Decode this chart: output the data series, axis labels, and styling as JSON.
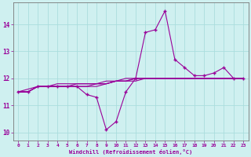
{
  "xlabel": "Windchill (Refroidissement éolien,°C)",
  "x": [
    0,
    1,
    2,
    3,
    4,
    5,
    6,
    7,
    8,
    9,
    10,
    11,
    12,
    13,
    14,
    15,
    16,
    17,
    18,
    19,
    20,
    21,
    22,
    23
  ],
  "line_main": [
    11.5,
    11.5,
    11.7,
    11.7,
    11.7,
    11.7,
    11.7,
    11.4,
    11.3,
    10.1,
    10.4,
    11.5,
    12.0,
    13.7,
    13.8,
    14.5,
    12.7,
    12.4,
    12.1,
    12.1,
    12.2,
    12.4,
    12.0,
    12.0
  ],
  "line_top": [
    11.5,
    11.6,
    11.7,
    11.7,
    11.8,
    11.8,
    11.8,
    11.8,
    11.8,
    11.8,
    11.9,
    12.0,
    12.0,
    12.0,
    12.0,
    12.0,
    12.0,
    12.0,
    12.0,
    12.0,
    12.0,
    12.0,
    12.0,
    12.0
  ],
  "line_mid1": [
    11.5,
    11.5,
    11.7,
    11.7,
    11.7,
    11.7,
    11.8,
    11.8,
    11.8,
    11.9,
    11.9,
    11.9,
    12.0,
    12.0,
    12.0,
    12.0,
    12.0,
    12.0,
    12.0,
    12.0,
    12.0,
    12.0,
    12.0,
    12.0
  ],
  "line_mid2": [
    11.5,
    11.5,
    11.7,
    11.7,
    11.7,
    11.7,
    11.7,
    11.7,
    11.8,
    11.8,
    11.9,
    11.9,
    12.0,
    12.0,
    12.0,
    12.0,
    12.0,
    12.0,
    12.0,
    12.0,
    12.0,
    12.0,
    12.0,
    12.0
  ],
  "line_bot": [
    11.5,
    11.5,
    11.7,
    11.7,
    11.7,
    11.7,
    11.7,
    11.7,
    11.7,
    11.8,
    11.9,
    11.9,
    11.9,
    12.0,
    12.0,
    12.0,
    12.0,
    12.0,
    12.0,
    12.0,
    12.0,
    12.0,
    12.0,
    12.0
  ],
  "line_color": "#990099",
  "bg_color": "#cff0f0",
  "grid_color": "#aadddd",
  "ylim": [
    9.7,
    14.8
  ],
  "yticks": [
    10,
    11,
    12,
    13,
    14
  ],
  "xticks": [
    0,
    1,
    2,
    3,
    4,
    5,
    6,
    7,
    8,
    9,
    10,
    11,
    12,
    13,
    14,
    15,
    16,
    17,
    18,
    19,
    20,
    21,
    22,
    23
  ]
}
